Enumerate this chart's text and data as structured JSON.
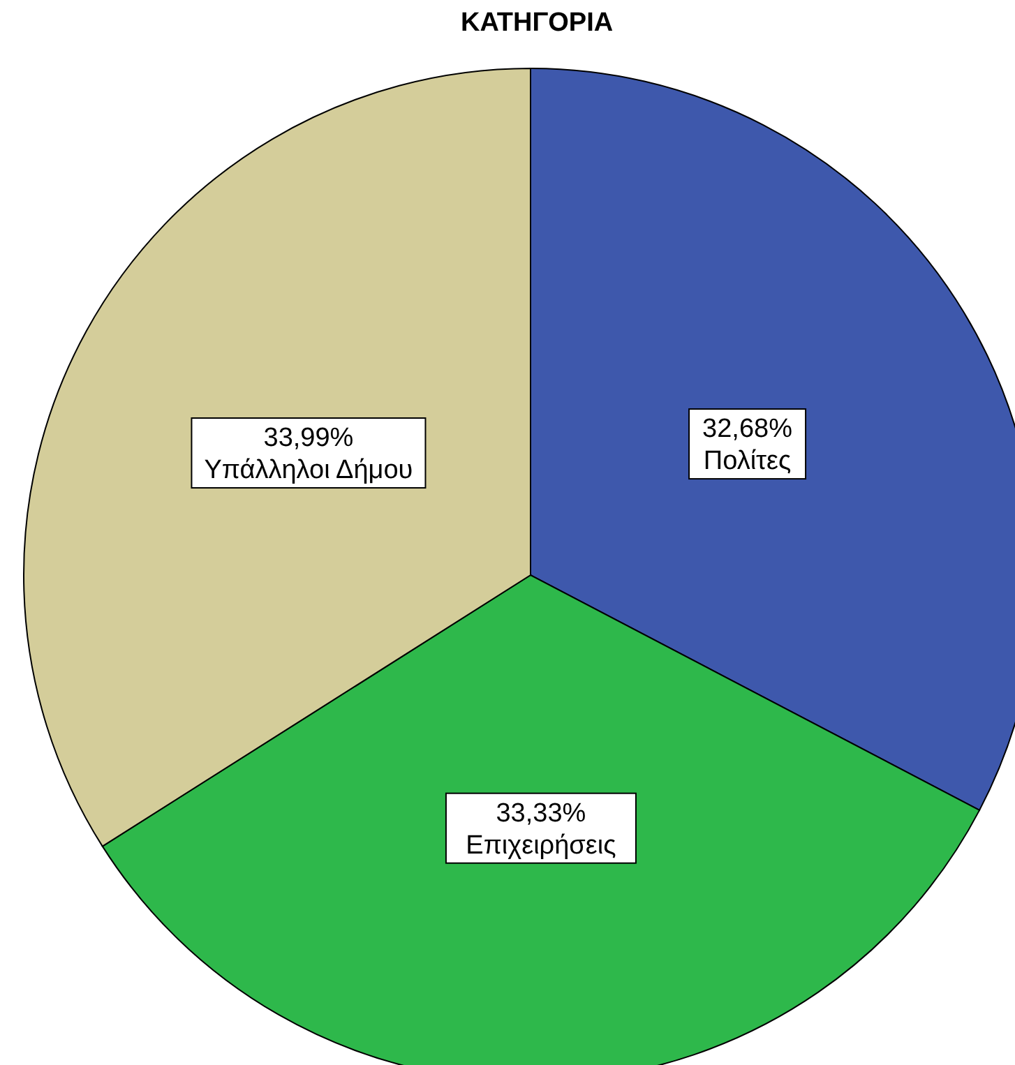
{
  "chart_data": {
    "type": "pie",
    "title": "ΚΑΤΗΓΟΡΙΑ",
    "categories": [
      "Πολίτες",
      "Επιχειρήσεις",
      "Υπάλληλοι Δήμου"
    ],
    "values": [
      32.68,
      33.33,
      33.99
    ],
    "value_labels": [
      "32,68%",
      "33,33%",
      "33,99%"
    ],
    "colors": [
      "#3e58ac",
      "#2eb84b",
      "#d4cd9a"
    ],
    "legend": false
  }
}
